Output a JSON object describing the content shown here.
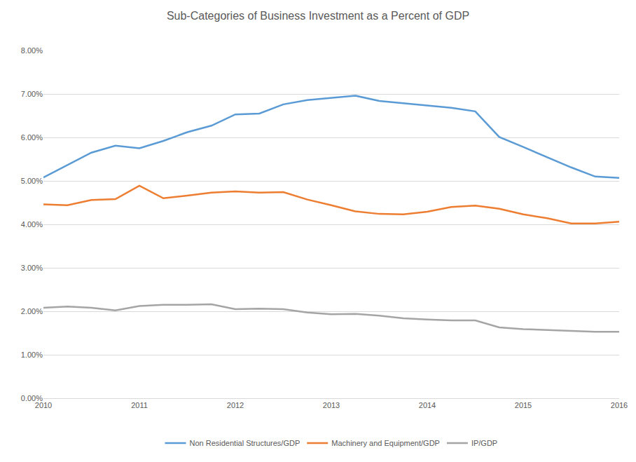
{
  "chart_data": {
    "type": "line",
    "title": "Sub-Categories of Business Investment as a Percent of GDP",
    "categories": [
      "2010",
      null,
      null,
      null,
      "2011",
      null,
      null,
      null,
      "2012",
      null,
      null,
      null,
      "2013",
      null,
      null,
      null,
      "2014",
      null,
      null,
      null,
      "2015",
      null,
      null,
      null,
      "2016"
    ],
    "series": [
      {
        "name": "Non Residential Structures/GDP",
        "color": "#5b9bd5",
        "values": [
          5.08,
          5.37,
          5.65,
          5.81,
          5.75,
          5.92,
          6.12,
          6.27,
          6.53,
          6.55,
          6.76,
          6.86,
          6.91,
          6.96,
          6.84,
          6.79,
          6.73,
          6.68,
          6.6,
          6.01,
          5.78,
          5.54,
          5.31,
          5.1,
          5.07
        ]
      },
      {
        "name": "Machinery and Equipment/GDP",
        "color": "#ed7d31",
        "values": [
          4.46,
          4.44,
          4.56,
          4.58,
          4.89,
          4.6,
          4.66,
          4.73,
          4.76,
          4.73,
          4.74,
          4.57,
          4.44,
          4.3,
          4.24,
          4.23,
          4.29,
          4.4,
          4.43,
          4.36,
          4.23,
          4.14,
          4.02,
          4.02,
          4.06
        ]
      },
      {
        "name": "IP/GDP",
        "color": "#a5a5a5",
        "values": [
          2.08,
          2.11,
          2.08,
          2.02,
          2.12,
          2.15,
          2.15,
          2.16,
          2.05,
          2.06,
          2.05,
          1.97,
          1.93,
          1.94,
          1.9,
          1.84,
          1.81,
          1.79,
          1.79,
          1.63,
          1.59,
          1.57,
          1.56,
          1.53,
          1.53
        ]
      }
    ],
    "ylim": [
      0,
      8
    ],
    "yticks": [
      {
        "value": 0,
        "label": "0.00%"
      },
      {
        "value": 1,
        "label": "1.00%"
      },
      {
        "value": 2,
        "label": "2.00%"
      },
      {
        "value": 3,
        "label": "3.00%"
      },
      {
        "value": 4,
        "label": "4.00%"
      },
      {
        "value": 5,
        "label": "5.00%"
      },
      {
        "value": 6,
        "label": "6.00%"
      },
      {
        "value": 7,
        "label": "7.00%"
      },
      {
        "value": 8,
        "label": "8.00%"
      }
    ],
    "grid": true,
    "legend": "bottom"
  }
}
